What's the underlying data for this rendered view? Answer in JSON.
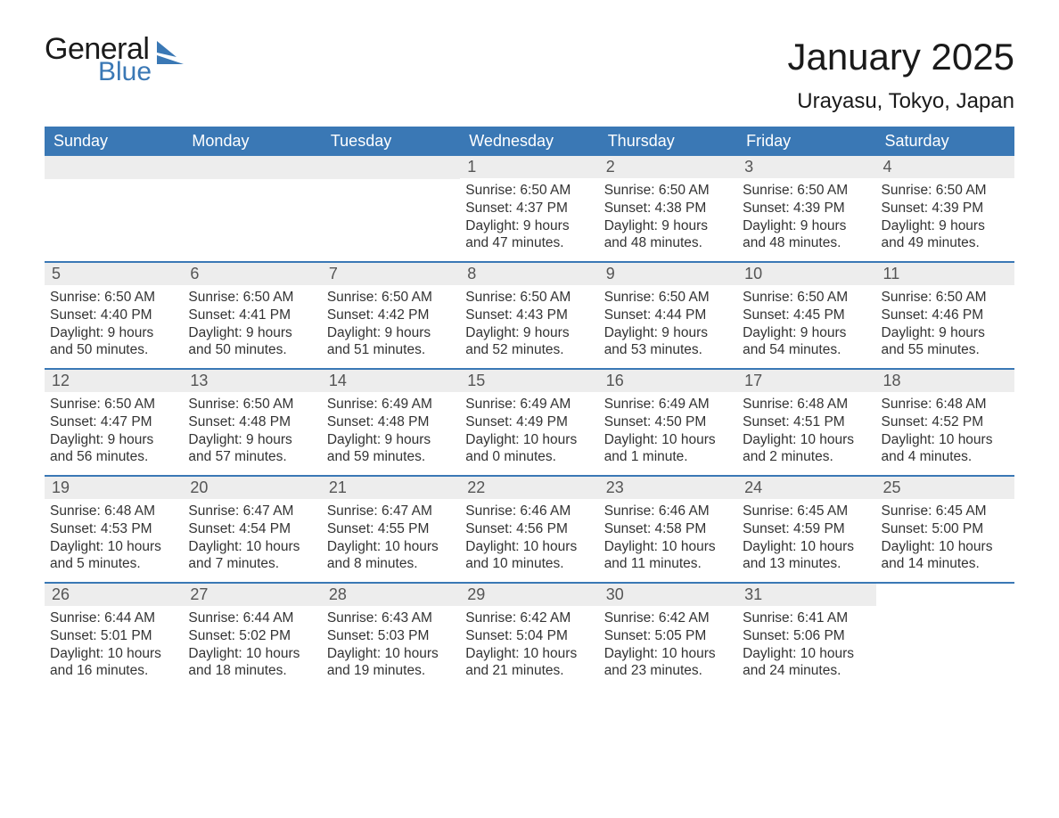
{
  "logo": {
    "general": "General",
    "blue": "Blue",
    "flag_color": "#3a78b5"
  },
  "title": "January 2025",
  "location": "Urayasu, Tokyo, Japan",
  "colors": {
    "header_bg": "#3a78b5",
    "row_divider": "#3a78b5",
    "daynum_bg": "#ededed",
    "text": "#333333",
    "background": "#ffffff"
  },
  "day_headers": [
    "Sunday",
    "Monday",
    "Tuesday",
    "Wednesday",
    "Thursday",
    "Friday",
    "Saturday"
  ],
  "weeks": [
    [
      {
        "blank": true
      },
      {
        "blank": true
      },
      {
        "blank": true
      },
      {
        "num": "1",
        "sunrise": "Sunrise: 6:50 AM",
        "sunset": "Sunset: 4:37 PM",
        "daylight": "Daylight: 9 hours and 47 minutes."
      },
      {
        "num": "2",
        "sunrise": "Sunrise: 6:50 AM",
        "sunset": "Sunset: 4:38 PM",
        "daylight": "Daylight: 9 hours and 48 minutes."
      },
      {
        "num": "3",
        "sunrise": "Sunrise: 6:50 AM",
        "sunset": "Sunset: 4:39 PM",
        "daylight": "Daylight: 9 hours and 48 minutes."
      },
      {
        "num": "4",
        "sunrise": "Sunrise: 6:50 AM",
        "sunset": "Sunset: 4:39 PM",
        "daylight": "Daylight: 9 hours and 49 minutes."
      }
    ],
    [
      {
        "num": "5",
        "sunrise": "Sunrise: 6:50 AM",
        "sunset": "Sunset: 4:40 PM",
        "daylight": "Daylight: 9 hours and 50 minutes."
      },
      {
        "num": "6",
        "sunrise": "Sunrise: 6:50 AM",
        "sunset": "Sunset: 4:41 PM",
        "daylight": "Daylight: 9 hours and 50 minutes."
      },
      {
        "num": "7",
        "sunrise": "Sunrise: 6:50 AM",
        "sunset": "Sunset: 4:42 PM",
        "daylight": "Daylight: 9 hours and 51 minutes."
      },
      {
        "num": "8",
        "sunrise": "Sunrise: 6:50 AM",
        "sunset": "Sunset: 4:43 PM",
        "daylight": "Daylight: 9 hours and 52 minutes."
      },
      {
        "num": "9",
        "sunrise": "Sunrise: 6:50 AM",
        "sunset": "Sunset: 4:44 PM",
        "daylight": "Daylight: 9 hours and 53 minutes."
      },
      {
        "num": "10",
        "sunrise": "Sunrise: 6:50 AM",
        "sunset": "Sunset: 4:45 PM",
        "daylight": "Daylight: 9 hours and 54 minutes."
      },
      {
        "num": "11",
        "sunrise": "Sunrise: 6:50 AM",
        "sunset": "Sunset: 4:46 PM",
        "daylight": "Daylight: 9 hours and 55 minutes."
      }
    ],
    [
      {
        "num": "12",
        "sunrise": "Sunrise: 6:50 AM",
        "sunset": "Sunset: 4:47 PM",
        "daylight": "Daylight: 9 hours and 56 minutes."
      },
      {
        "num": "13",
        "sunrise": "Sunrise: 6:50 AM",
        "sunset": "Sunset: 4:48 PM",
        "daylight": "Daylight: 9 hours and 57 minutes."
      },
      {
        "num": "14",
        "sunrise": "Sunrise: 6:49 AM",
        "sunset": "Sunset: 4:48 PM",
        "daylight": "Daylight: 9 hours and 59 minutes."
      },
      {
        "num": "15",
        "sunrise": "Sunrise: 6:49 AM",
        "sunset": "Sunset: 4:49 PM",
        "daylight": "Daylight: 10 hours and 0 minutes."
      },
      {
        "num": "16",
        "sunrise": "Sunrise: 6:49 AM",
        "sunset": "Sunset: 4:50 PM",
        "daylight": "Daylight: 10 hours and 1 minute."
      },
      {
        "num": "17",
        "sunrise": "Sunrise: 6:48 AM",
        "sunset": "Sunset: 4:51 PM",
        "daylight": "Daylight: 10 hours and 2 minutes."
      },
      {
        "num": "18",
        "sunrise": "Sunrise: 6:48 AM",
        "sunset": "Sunset: 4:52 PM",
        "daylight": "Daylight: 10 hours and 4 minutes."
      }
    ],
    [
      {
        "num": "19",
        "sunrise": "Sunrise: 6:48 AM",
        "sunset": "Sunset: 4:53 PM",
        "daylight": "Daylight: 10 hours and 5 minutes."
      },
      {
        "num": "20",
        "sunrise": "Sunrise: 6:47 AM",
        "sunset": "Sunset: 4:54 PM",
        "daylight": "Daylight: 10 hours and 7 minutes."
      },
      {
        "num": "21",
        "sunrise": "Sunrise: 6:47 AM",
        "sunset": "Sunset: 4:55 PM",
        "daylight": "Daylight: 10 hours and 8 minutes."
      },
      {
        "num": "22",
        "sunrise": "Sunrise: 6:46 AM",
        "sunset": "Sunset: 4:56 PM",
        "daylight": "Daylight: 10 hours and 10 minutes."
      },
      {
        "num": "23",
        "sunrise": "Sunrise: 6:46 AM",
        "sunset": "Sunset: 4:58 PM",
        "daylight": "Daylight: 10 hours and 11 minutes."
      },
      {
        "num": "24",
        "sunrise": "Sunrise: 6:45 AM",
        "sunset": "Sunset: 4:59 PM",
        "daylight": "Daylight: 10 hours and 13 minutes."
      },
      {
        "num": "25",
        "sunrise": "Sunrise: 6:45 AM",
        "sunset": "Sunset: 5:00 PM",
        "daylight": "Daylight: 10 hours and 14 minutes."
      }
    ],
    [
      {
        "num": "26",
        "sunrise": "Sunrise: 6:44 AM",
        "sunset": "Sunset: 5:01 PM",
        "daylight": "Daylight: 10 hours and 16 minutes."
      },
      {
        "num": "27",
        "sunrise": "Sunrise: 6:44 AM",
        "sunset": "Sunset: 5:02 PM",
        "daylight": "Daylight: 10 hours and 18 minutes."
      },
      {
        "num": "28",
        "sunrise": "Sunrise: 6:43 AM",
        "sunset": "Sunset: 5:03 PM",
        "daylight": "Daylight: 10 hours and 19 minutes."
      },
      {
        "num": "29",
        "sunrise": "Sunrise: 6:42 AM",
        "sunset": "Sunset: 5:04 PM",
        "daylight": "Daylight: 10 hours and 21 minutes."
      },
      {
        "num": "30",
        "sunrise": "Sunrise: 6:42 AM",
        "sunset": "Sunset: 5:05 PM",
        "daylight": "Daylight: 10 hours and 23 minutes."
      },
      {
        "num": "31",
        "sunrise": "Sunrise: 6:41 AM",
        "sunset": "Sunset: 5:06 PM",
        "daylight": "Daylight: 10 hours and 24 minutes."
      },
      {
        "blank": true,
        "no_bar": true
      }
    ]
  ]
}
